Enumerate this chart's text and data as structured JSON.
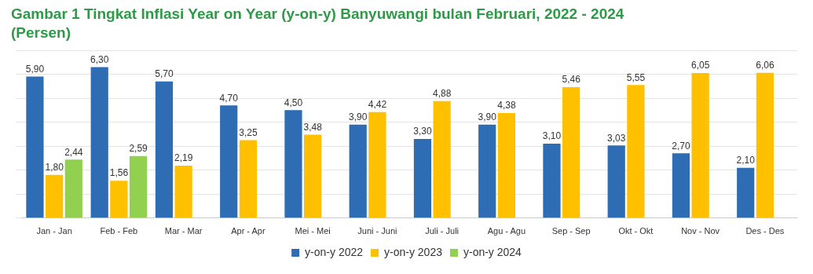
{
  "chart_data": {
    "type": "bar",
    "title": "Gambar 1   Tingkat Inflasi Year on Year (y-on-y) Banyuwangi bulan Februari, 2022 - 2024",
    "subtitle": "(Persen)",
    "categories": [
      "Jan - Jan",
      "Feb - Feb",
      "Mar - Mar",
      "Apr - Apr",
      "Mei - Mei",
      "Juni - Juni",
      "Juli - Juli",
      "Agu - Agu",
      "Sep - Sep",
      "Okt - Okt",
      "Nov - Nov",
      "Des - Des"
    ],
    "series": [
      {
        "name": "y-on-y 2022",
        "color": "#2e6db4",
        "values": [
          5.9,
          6.3,
          5.7,
          4.7,
          4.5,
          3.9,
          3.3,
          3.9,
          3.1,
          3.03,
          2.7,
          2.1
        ],
        "value_labels": [
          "5,90",
          "6,30",
          "5,70",
          "4,70",
          "4,50",
          "3,90",
          "3,30",
          "3,90",
          "3,10",
          "3,03",
          "2,70",
          "2,10"
        ]
      },
      {
        "name": "y-on-y 2023",
        "color": "#ffc000",
        "values": [
          1.8,
          1.56,
          2.19,
          3.25,
          3.48,
          4.42,
          4.88,
          4.38,
          5.46,
          5.55,
          6.05,
          6.06
        ],
        "value_labels": [
          "1,80",
          "1,56",
          "2,19",
          "3,25",
          "3,48",
          "4,42",
          "4,88",
          "4,38",
          "5,46",
          "5,55",
          "6,05",
          "6,06"
        ]
      },
      {
        "name": "y-on-y 2024",
        "color": "#92d050",
        "values": [
          2.44,
          2.59,
          null,
          null,
          null,
          null,
          null,
          null,
          null,
          null,
          null,
          null
        ],
        "value_labels": [
          "2,44",
          "2,59",
          null,
          null,
          null,
          null,
          null,
          null,
          null,
          null,
          null,
          null
        ]
      }
    ],
    "grid": "y",
    "legend": "bottom",
    "tick_labels": "x"
  }
}
